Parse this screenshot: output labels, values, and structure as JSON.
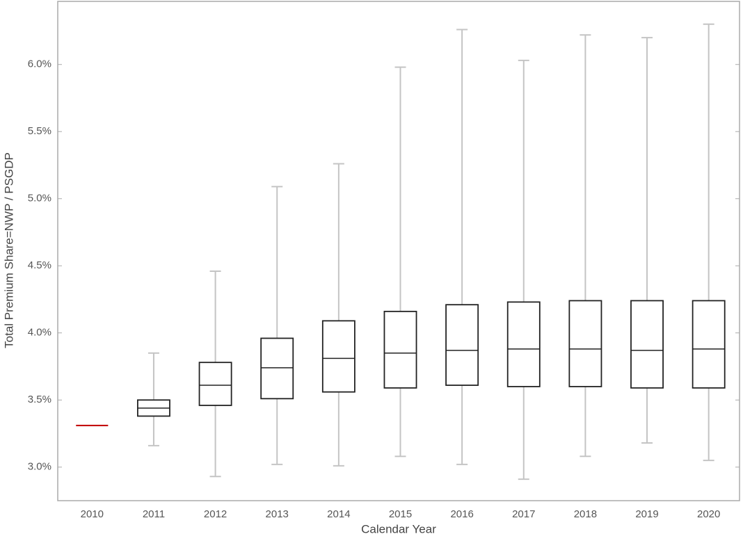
{
  "chart_data": {
    "type": "box",
    "x_label": "Calendar Year",
    "y_label": "Total Premium Share=NWP / PSGDP",
    "categories": [
      "2010",
      "2011",
      "2012",
      "2013",
      "2014",
      "2015",
      "2016",
      "2017",
      "2018",
      "2019",
      "2020"
    ],
    "boxes": [
      {
        "min": 3.31,
        "q1": 3.31,
        "median": 3.31,
        "q3": 3.31,
        "max": 3.31
      },
      {
        "min": 3.16,
        "q1": 3.38,
        "median": 3.44,
        "q3": 3.5,
        "max": 3.85
      },
      {
        "min": 2.93,
        "q1": 3.46,
        "median": 3.61,
        "q3": 3.78,
        "max": 4.46
      },
      {
        "min": 3.02,
        "q1": 3.51,
        "median": 3.74,
        "q3": 3.96,
        "max": 5.09
      },
      {
        "min": 3.01,
        "q1": 3.56,
        "median": 3.81,
        "q3": 4.09,
        "max": 5.26
      },
      {
        "min": 3.08,
        "q1": 3.59,
        "median": 3.85,
        "q3": 4.16,
        "max": 5.98
      },
      {
        "min": 3.02,
        "q1": 3.61,
        "median": 3.87,
        "q3": 4.21,
        "max": 6.26
      },
      {
        "min": 2.91,
        "q1": 3.6,
        "median": 3.88,
        "q3": 4.23,
        "max": 6.03
      },
      {
        "min": 3.08,
        "q1": 3.6,
        "median": 3.88,
        "q3": 4.24,
        "max": 6.22
      },
      {
        "min": 3.18,
        "q1": 3.59,
        "median": 3.87,
        "q3": 4.24,
        "max": 6.2
      },
      {
        "min": 3.05,
        "q1": 3.59,
        "median": 3.88,
        "q3": 4.24,
        "max": 6.3
      }
    ],
    "box_color": "#222222",
    "whisker_color": "#c4c4c4",
    "single_value_color": "#c00000",
    "ylim": [
      2.75,
      6.47
    ],
    "yticks": [
      {
        "value": 3.0,
        "label": "3.0%"
      },
      {
        "value": 3.5,
        "label": "3.5%"
      },
      {
        "value": 4.0,
        "label": "4.0%"
      },
      {
        "value": 4.5,
        "label": "4.5%"
      },
      {
        "value": 5.0,
        "label": "5.0%"
      },
      {
        "value": 5.5,
        "label": "5.5%"
      },
      {
        "value": 6.0,
        "label": "6.0%"
      }
    ]
  }
}
